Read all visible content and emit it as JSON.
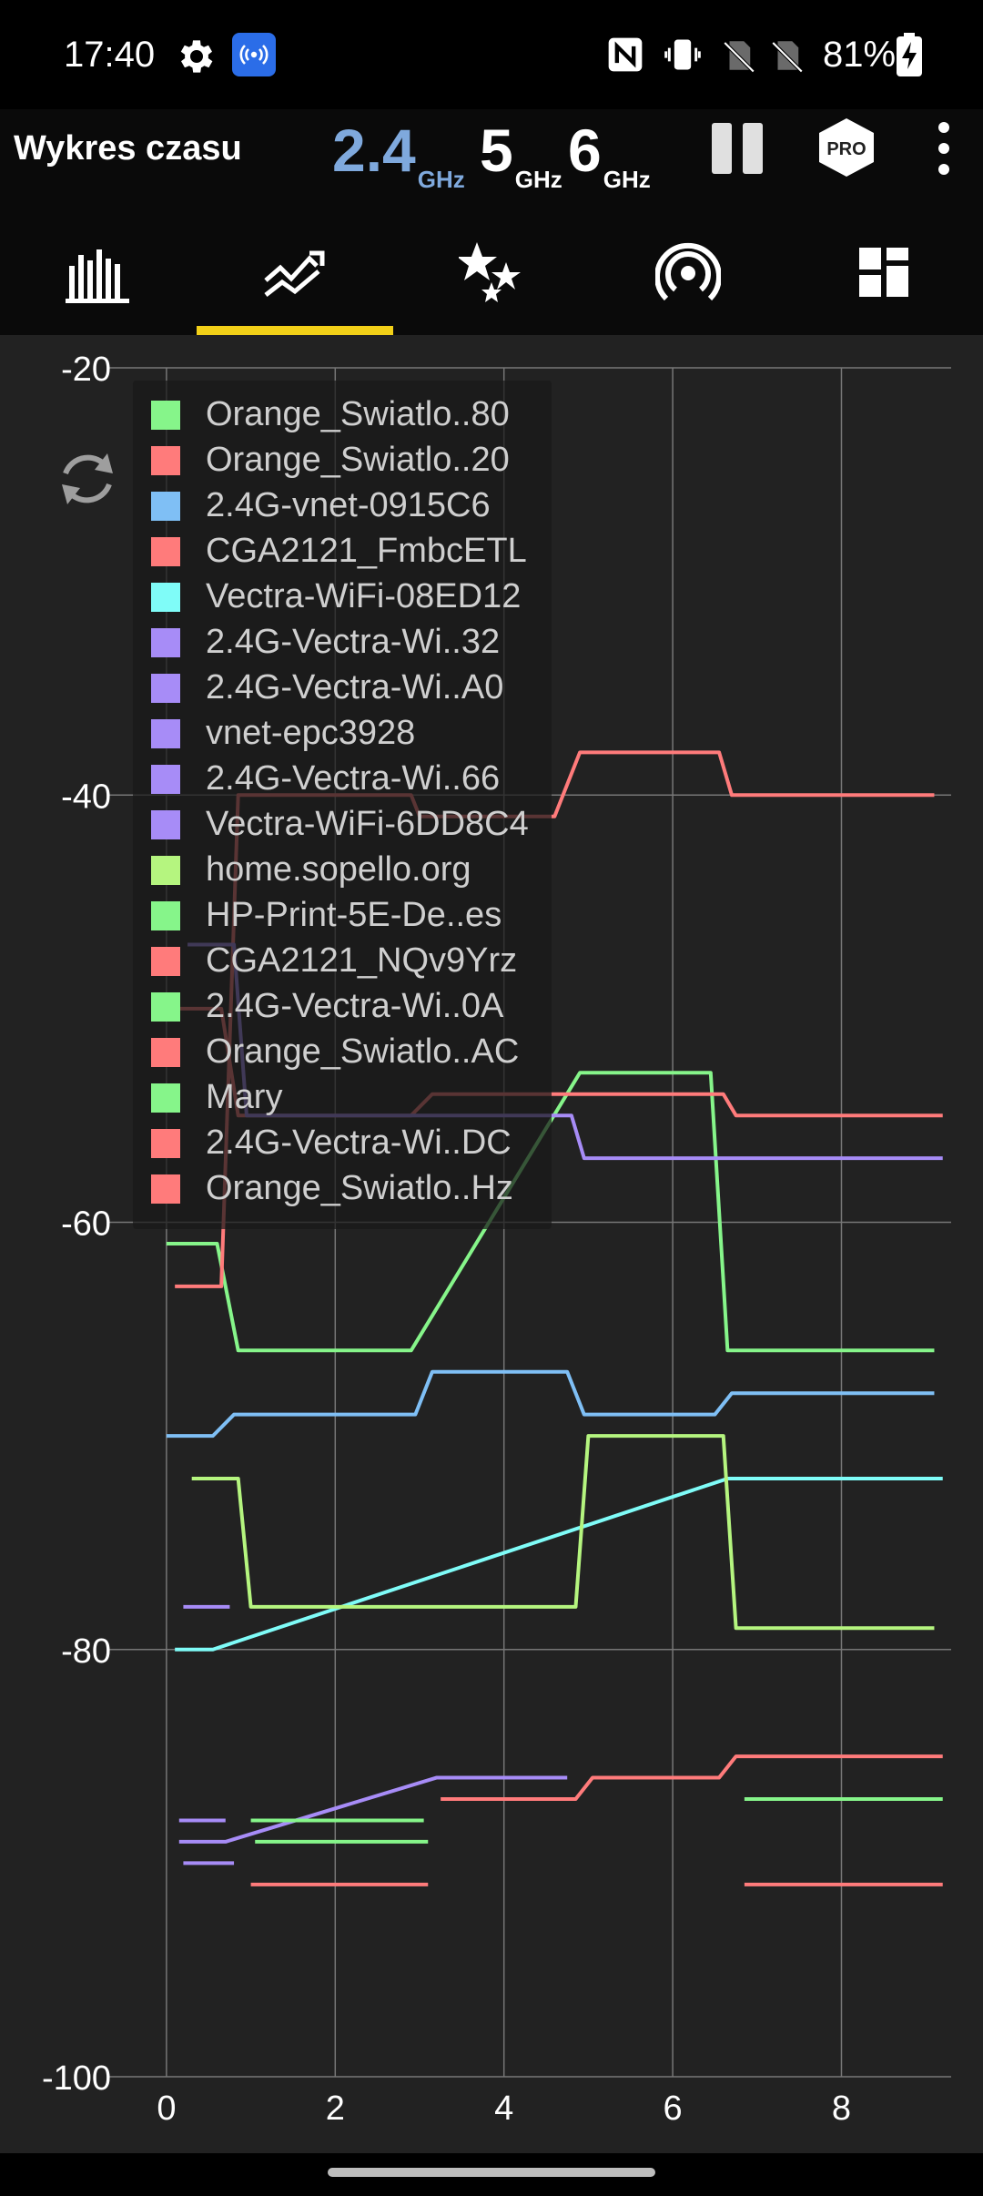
{
  "status_bar": {
    "time": "17:40",
    "battery": "81%",
    "icons": [
      "gear-icon",
      "hotspot-icon",
      "nfc-icon",
      "vibrate-icon",
      "no-sim-icon",
      "no-sim-icon",
      "battery-charging-icon"
    ]
  },
  "header": {
    "title": "Wykres czasu",
    "bands": [
      {
        "value": "2.4",
        "unit": "GHz",
        "active": true,
        "color": "#7fa9dd"
      },
      {
        "value": "5",
        "unit": "GHz",
        "active": false,
        "color": "#ffffff"
      },
      {
        "value": "6",
        "unit": "GHz",
        "active": false,
        "color": "#ffffff"
      }
    ],
    "pro_label": "PRO",
    "actions": [
      "pause-icon",
      "pro-badge-icon",
      "more-vert-icon"
    ]
  },
  "nav_tabs": [
    {
      "icon": "bar-chart-icon",
      "active": false
    },
    {
      "icon": "time-graph-icon",
      "active": true
    },
    {
      "icon": "stars-icon",
      "active": false
    },
    {
      "icon": "signal-strength-icon",
      "active": false
    },
    {
      "icon": "dashboard-icon",
      "active": false
    }
  ],
  "accent_color": "#f2d018",
  "chart_data": {
    "type": "line",
    "title": "",
    "xlabel": "",
    "ylabel": "",
    "xlim": [
      -0.7,
      9.3
    ],
    "ylim": [
      -100,
      -20
    ],
    "x_ticks": [
      0,
      2,
      4,
      6,
      8
    ],
    "y_ticks": [
      -20,
      -40,
      -60,
      -80,
      -100
    ],
    "grid": true,
    "legend_position": "top-left",
    "series": [
      {
        "name": "Orange_Swiatlo..80",
        "color": "#86f58a",
        "x": [
          0,
          0.6,
          0.85,
          2.9,
          4.9,
          6.45,
          6.65,
          9.1
        ],
        "y": [
          -61,
          -61,
          -66,
          -66,
          -53,
          -53,
          -66,
          -66
        ]
      },
      {
        "name": "Orange_Swiatlo..20",
        "color": "#ff7b7b",
        "x": [
          0.1,
          0.65,
          0.85,
          2.9,
          3.0,
          4.6,
          4.9,
          6.55,
          6.7,
          9.1
        ],
        "y": [
          -63,
          -63,
          -40,
          -40,
          -41,
          -41,
          -38,
          -38,
          -40,
          -40
        ]
      },
      {
        "name": "2.4G-vnet-0915C6",
        "color": "#7fbff5",
        "x": [
          0,
          0.55,
          0.8,
          2.95,
          3.15,
          4.75,
          4.95,
          6.5,
          6.7,
          9.1
        ],
        "y": [
          -70,
          -70,
          -69,
          -69,
          -67,
          -67,
          -69,
          -69,
          -68,
          -68
        ]
      },
      {
        "name": "CGA2121_FmbcETL",
        "color": "#ff7b7b",
        "x": [
          0.1,
          0.65,
          0.85,
          2.9,
          3.15,
          6.6,
          6.75,
          9.2
        ],
        "y": [
          -50,
          -50,
          -55,
          -55,
          -54,
          -54,
          -55,
          -55
        ]
      },
      {
        "name": "Vectra-WiFi-08ED12",
        "color": "#7ffcf8",
        "x": [
          0.1,
          0.55,
          6.65,
          9.2
        ],
        "y": [
          -80,
          -80,
          -72,
          -72
        ]
      },
      {
        "name": "2.4G-Vectra-Wi..32",
        "color": "#a78cf7",
        "x": [
          0.25,
          0.8,
          0.95,
          3.0,
          3.15,
          4.8,
          4.95,
          9.2
        ],
        "y": [
          -47,
          -47,
          -55,
          -55,
          -55,
          -55,
          -57,
          -57
        ]
      },
      {
        "name": "2.4G-Vectra-Wi..A0",
        "color": "#a78cf7",
        "x": [
          0.2,
          0.75
        ],
        "y": [
          -78,
          -78
        ]
      },
      {
        "name": "vnet-epc3928",
        "color": "#a78cf7",
        "x": [
          0.15,
          0.7,
          3.2,
          4.75
        ],
        "y": [
          -89,
          -89,
          -86,
          -86
        ]
      },
      {
        "name": "2.4G-Vectra-Wi..66",
        "color": "#a78cf7",
        "x": [
          0.15,
          0.7
        ],
        "y": [
          -88,
          -88
        ]
      },
      {
        "name": "Vectra-WiFi-6DD8C4",
        "color": "#a78cf7",
        "x": [
          0.2,
          0.8
        ],
        "y": [
          -90,
          -90
        ]
      },
      {
        "name": "home.sopello.org",
        "color": "#b5f57f",
        "x": [
          0.3,
          0.85,
          1.0,
          4.85,
          5.0,
          6.6,
          6.75,
          9.1
        ],
        "y": [
          -72,
          -72,
          -78,
          -78,
          -70,
          -70,
          -79,
          -79
        ]
      },
      {
        "name": "HP-Print-5E-De..es",
        "color": "#86f58a",
        "x": [
          1.0,
          3.05
        ],
        "y": [
          -88,
          -88
        ]
      },
      {
        "name": "CGA2121_NQv9Yrz",
        "color": "#ff7b7b",
        "x": [
          3.25,
          4.85,
          5.05,
          6.55,
          6.75,
          9.2
        ],
        "y": [
          -87,
          -87,
          -86,
          -86,
          -85,
          -85
        ]
      },
      {
        "name": "2.4G-Vectra-Wi..0A",
        "color": "#86f58a",
        "x": [
          1.05,
          3.1
        ],
        "y": [
          -89,
          -89
        ]
      },
      {
        "name": "Orange_Swiatlo..AC",
        "color": "#ff7b7b",
        "x": [
          1.0,
          3.1
        ],
        "y": [
          -91,
          -91
        ]
      },
      {
        "name": "Mary",
        "color": "#86f58a",
        "x": [
          6.85,
          9.2
        ],
        "y": [
          -87,
          -87
        ]
      },
      {
        "name": "2.4G-Vectra-Wi..DC",
        "color": "#ff7b7b",
        "x": [
          6.85,
          9.2
        ],
        "y": [
          -91,
          -91
        ]
      },
      {
        "name": "Orange_Swiatlo..Hz",
        "color": "#ff7b7b",
        "x": [],
        "y": []
      }
    ]
  }
}
